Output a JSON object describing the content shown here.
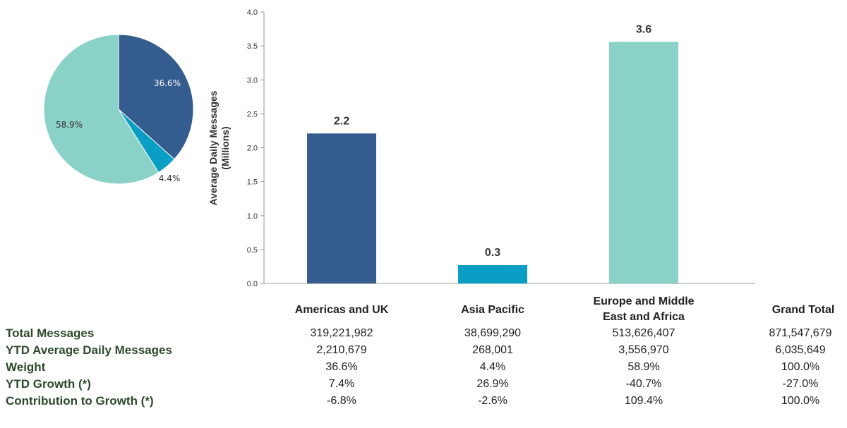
{
  "colors": {
    "americas": "#345c8e",
    "asia": "#0a9ec4",
    "emea": "#8ad1c8",
    "axis": "#999999",
    "label_green": "#2c4a2a"
  },
  "chart_data": [
    {
      "type": "pie",
      "slices": [
        {
          "label": "36.6%",
          "value": 36.6,
          "color": "#345c8e"
        },
        {
          "label": "4.4%",
          "value": 4.4,
          "color": "#0a9ec4"
        },
        {
          "label": "58.9%",
          "value": 58.9,
          "color": "#8ad1c8"
        }
      ]
    },
    {
      "type": "bar",
      "categories": [
        "Americas and UK",
        "Asia Pacific",
        "Europe and Middle East and Africa"
      ],
      "values": [
        2.21,
        0.27,
        3.56
      ],
      "data_labels": [
        "2.2",
        "0.3",
        "3.6"
      ],
      "colors": [
        "#345c8e",
        "#0a9ec4",
        "#8ad1c8"
      ],
      "ylabel_lines": [
        "Average Daily Messages",
        "(Millions)"
      ],
      "ylim": [
        0,
        4.0
      ],
      "yticks": [
        "0.0",
        "0.5",
        "1.0",
        "1.5",
        "2.0",
        "2.5",
        "3.0",
        "3.5",
        "4.0"
      ],
      "grid": false
    }
  ],
  "table": {
    "grand_total_header": "Grand Total",
    "rows": [
      {
        "label": "Total Messages",
        "values": [
          "319,221,982",
          "38,699,290",
          "513,626,407",
          "871,547,679"
        ]
      },
      {
        "label": "YTD Average Daily Messages",
        "values": [
          "2,210,679",
          "268,001",
          "3,556,970",
          "6,035,649"
        ]
      },
      {
        "label": "Weight",
        "values": [
          "36.6%",
          "4.4%",
          "58.9%",
          "100.0%"
        ]
      },
      {
        "label": "YTD Growth (*)",
        "values": [
          "7.4%",
          "26.9%",
          "-40.7%",
          "-27.0%"
        ]
      },
      {
        "label": "Contribution to Growth (*)",
        "values": [
          "-6.8%",
          "-2.6%",
          "109.4%",
          "100.0%"
        ]
      }
    ]
  }
}
